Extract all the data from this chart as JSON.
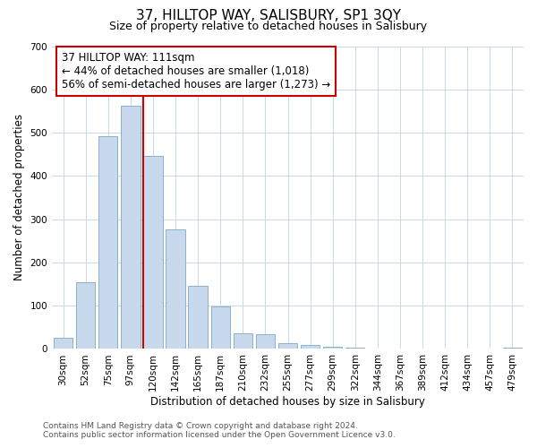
{
  "title": "37, HILLTOP WAY, SALISBURY, SP1 3QY",
  "subtitle": "Size of property relative to detached houses in Salisbury",
  "xlabel": "Distribution of detached houses by size in Salisbury",
  "ylabel": "Number of detached properties",
  "bar_labels": [
    "30sqm",
    "52sqm",
    "75sqm",
    "97sqm",
    "120sqm",
    "142sqm",
    "165sqm",
    "187sqm",
    "210sqm",
    "232sqm",
    "255sqm",
    "277sqm",
    "299sqm",
    "322sqm",
    "344sqm",
    "367sqm",
    "389sqm",
    "412sqm",
    "434sqm",
    "457sqm",
    "479sqm"
  ],
  "bar_values": [
    25,
    155,
    492,
    563,
    447,
    277,
    146,
    98,
    36,
    35,
    14,
    9,
    5,
    3,
    1,
    1,
    0,
    0,
    0,
    0,
    3
  ],
  "bar_color": "#c8d9ed",
  "bar_edge_color": "#7ba7c9",
  "vline_bar_index": 4,
  "vline_color": "#cc0000",
  "annotation_text": "37 HILLTOP WAY: 111sqm\n← 44% of detached houses are smaller (1,018)\n56% of semi-detached houses are larger (1,273) →",
  "annotation_box_color": "#ffffff",
  "annotation_box_edge": "#cc0000",
  "ylim": [
    0,
    700
  ],
  "yticks": [
    0,
    100,
    200,
    300,
    400,
    500,
    600,
    700
  ],
  "background_color": "#ffffff",
  "grid_color": "#c8d9ed",
  "footer_line1": "Contains HM Land Registry data © Crown copyright and database right 2024.",
  "footer_line2": "Contains public sector information licensed under the Open Government Licence v3.0.",
  "title_fontsize": 11,
  "subtitle_fontsize": 9,
  "label_fontsize": 8.5,
  "tick_fontsize": 7.5,
  "annotation_fontsize": 8.5,
  "footer_fontsize": 6.5
}
